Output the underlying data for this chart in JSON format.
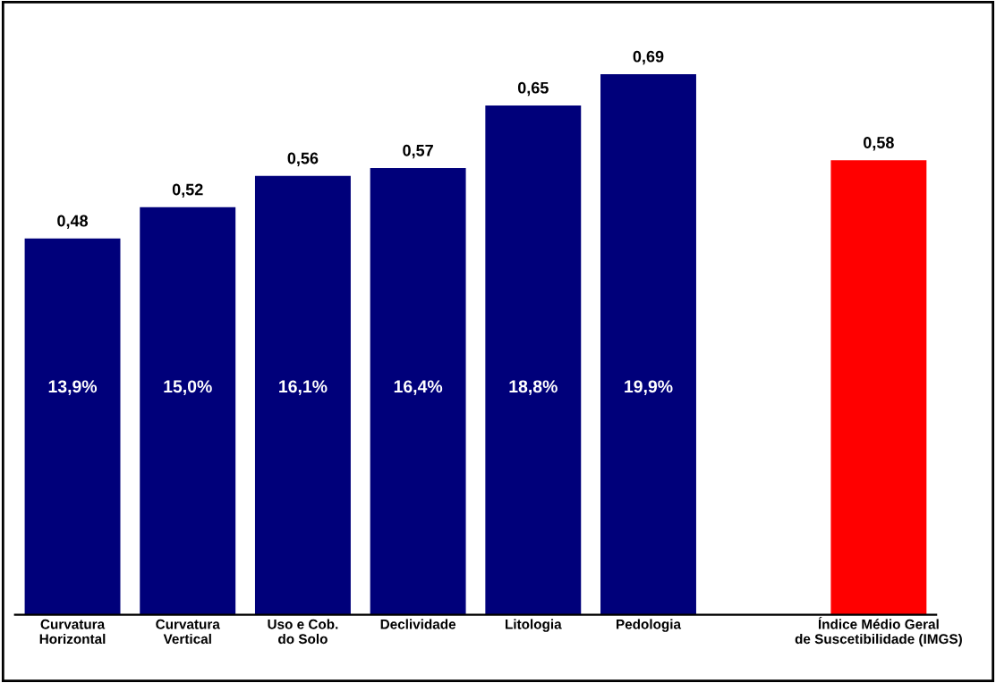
{
  "chart_data": {
    "type": "bar",
    "categories": [
      "Curvatura\nHorizontal",
      "Curvatura\nVertical",
      "Uso e Cob.\ndo Solo",
      "Declividade",
      "Litologia",
      "Pedologia",
      null,
      "Índice Médio Geral\nde Suscetibilidade (IMGS)"
    ],
    "values": [
      0.48,
      0.52,
      0.56,
      0.57,
      0.65,
      0.69,
      null,
      0.58
    ],
    "value_labels": [
      "0,48",
      "0,52",
      "0,56",
      "0,57",
      "0,65",
      "0,69",
      null,
      "0,58"
    ],
    "colors": [
      "#00007a",
      "#00007a",
      "#00007a",
      "#00007a",
      "#00007a",
      "#00007a",
      "#00007a",
      "#ff0000"
    ],
    "tick_labels": "x",
    "grid": false,
    "legend": false,
    "annotations": [
      "13,9%",
      "15,0%",
      "16,1%",
      "16,4%",
      "18,8%",
      "19,9%"
    ]
  }
}
